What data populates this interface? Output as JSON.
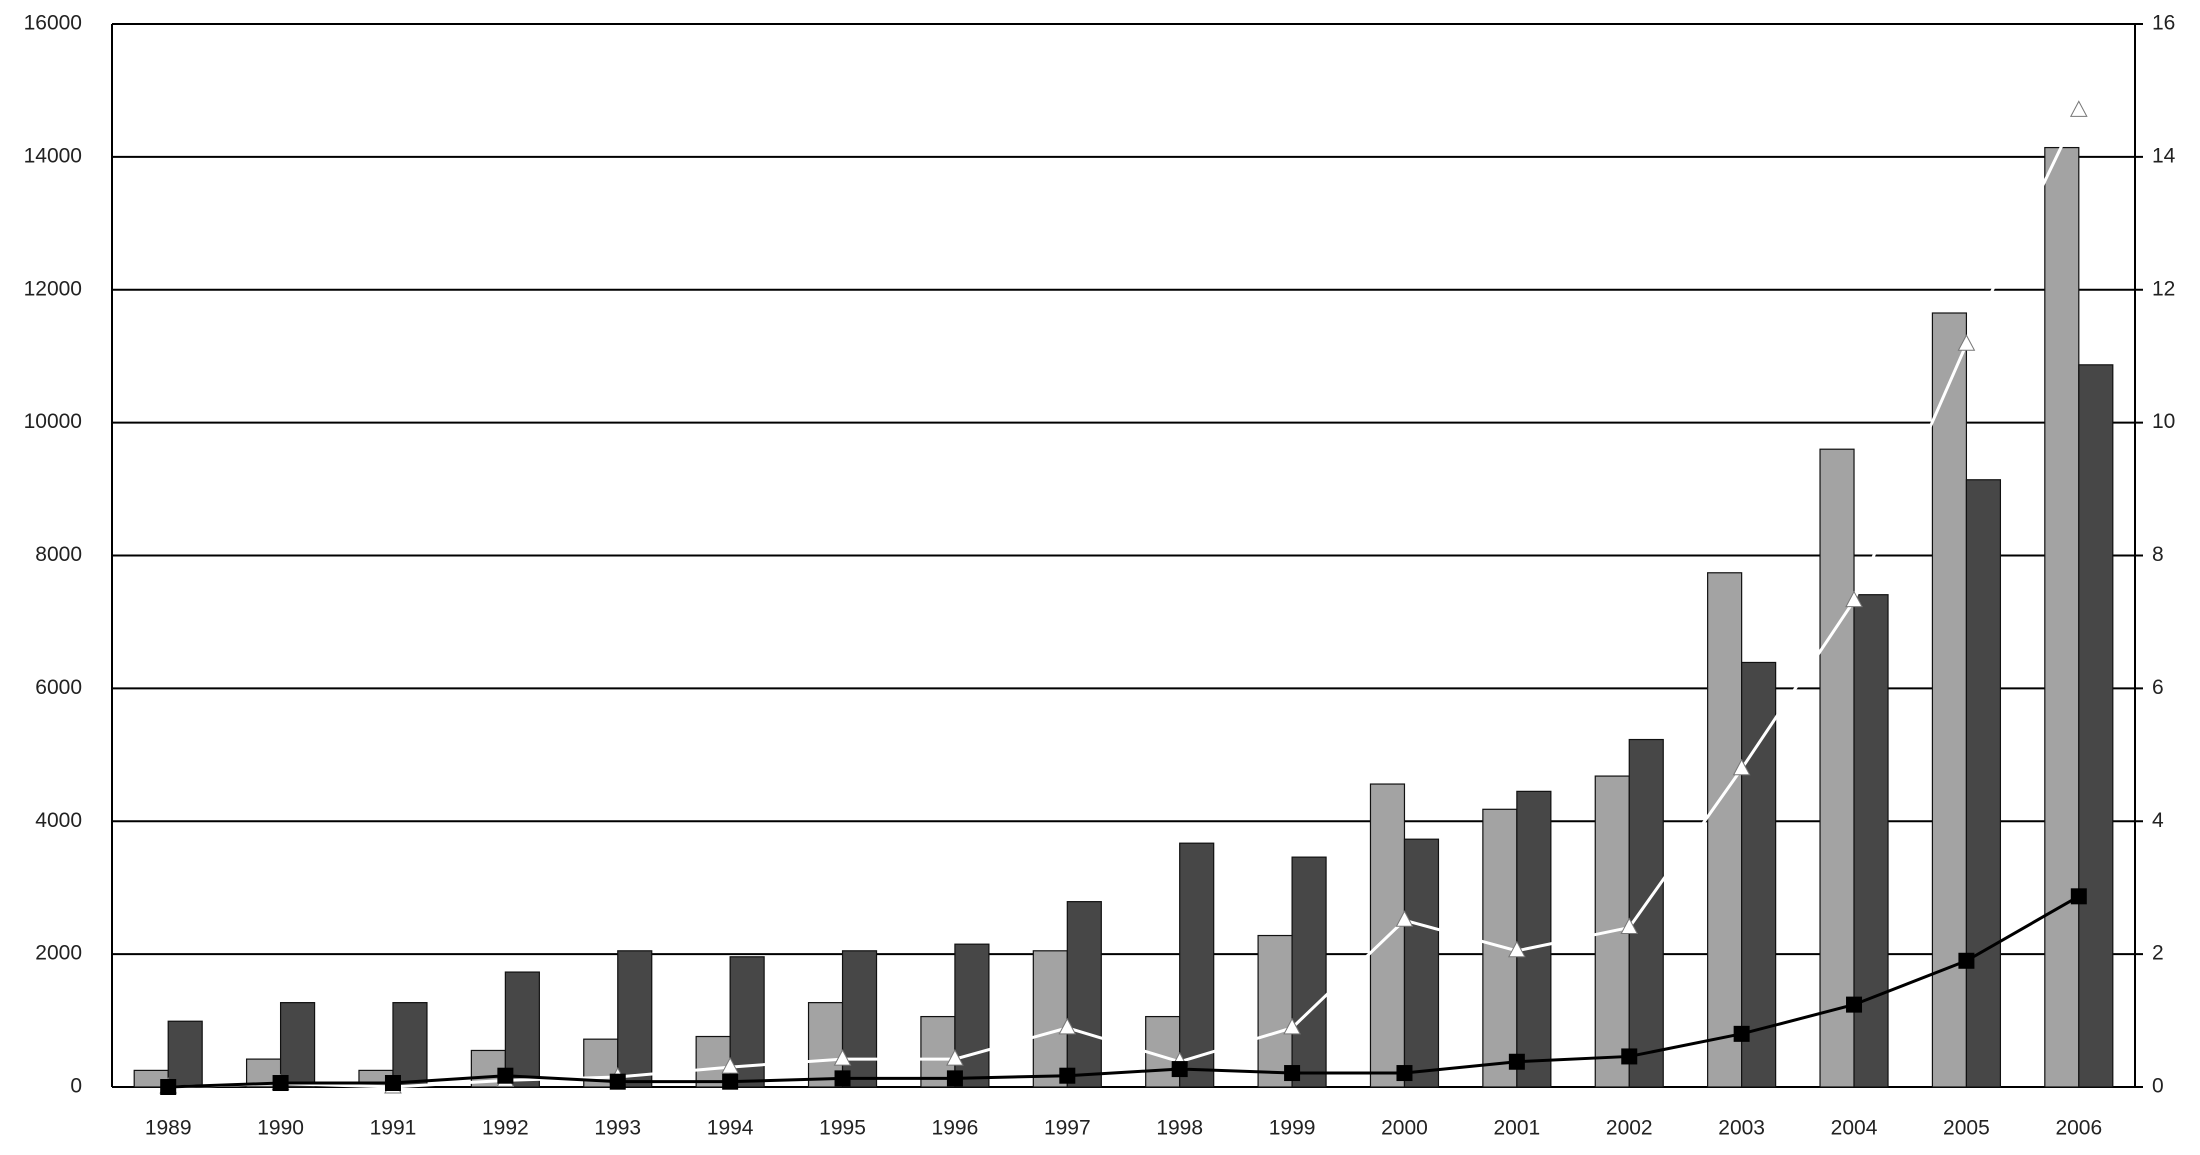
{
  "chart_data": {
    "type": "bar",
    "categories": [
      "1989",
      "1990",
      "1991",
      "1992",
      "1993",
      "1994",
      "1995",
      "1996",
      "1997",
      "1998",
      "1999",
      "2000",
      "2001",
      "2002",
      "2003",
      "2004",
      "2005",
      "2006"
    ],
    "series": [
      {
        "type": "bar",
        "color": "#a3a3a3",
        "values": [
          250,
          420,
          250,
          550,
          720,
          760,
          1270,
          1060,
          2050,
          1060,
          2280,
          4560,
          4180,
          4680,
          7740,
          9600,
          11650,
          14140
        ]
      },
      {
        "type": "bar",
        "color": "#474747",
        "values": [
          990,
          1270,
          1270,
          1730,
          2050,
          1960,
          2050,
          2150,
          2790,
          3670,
          3460,
          3730,
          4450,
          5230,
          6390,
          7410,
          9140,
          10870
        ]
      },
      {
        "type": "line",
        "axis": "y2",
        "marker": "triangle",
        "color": "#ffffff",
        "values": [
          0,
          0.05,
          0,
          0.1,
          0.15,
          0.3,
          0.42,
          0.42,
          0.89,
          0.38,
          0.89,
          2.51,
          2.05,
          2.4,
          4.79,
          7.32,
          11.18,
          14.7
        ]
      },
      {
        "type": "line",
        "axis": "y2",
        "marker": "square",
        "color": "#000000",
        "values": [
          0,
          0.06,
          0.06,
          0.17,
          0.08,
          0.08,
          0.13,
          0.13,
          0.17,
          0.27,
          0.21,
          0.21,
          0.38,
          0.46,
          0.8,
          1.24,
          1.9,
          2.87
        ]
      }
    ],
    "ylim": [
      0,
      16000
    ],
    "yticks": [
      0,
      2000,
      4000,
      6000,
      8000,
      10000,
      12000,
      14000,
      16000
    ],
    "y2lim": [
      0,
      16
    ],
    "y2ticks": [
      0,
      2,
      4,
      6,
      8,
      10,
      12,
      14,
      16
    ],
    "grid": true
  }
}
